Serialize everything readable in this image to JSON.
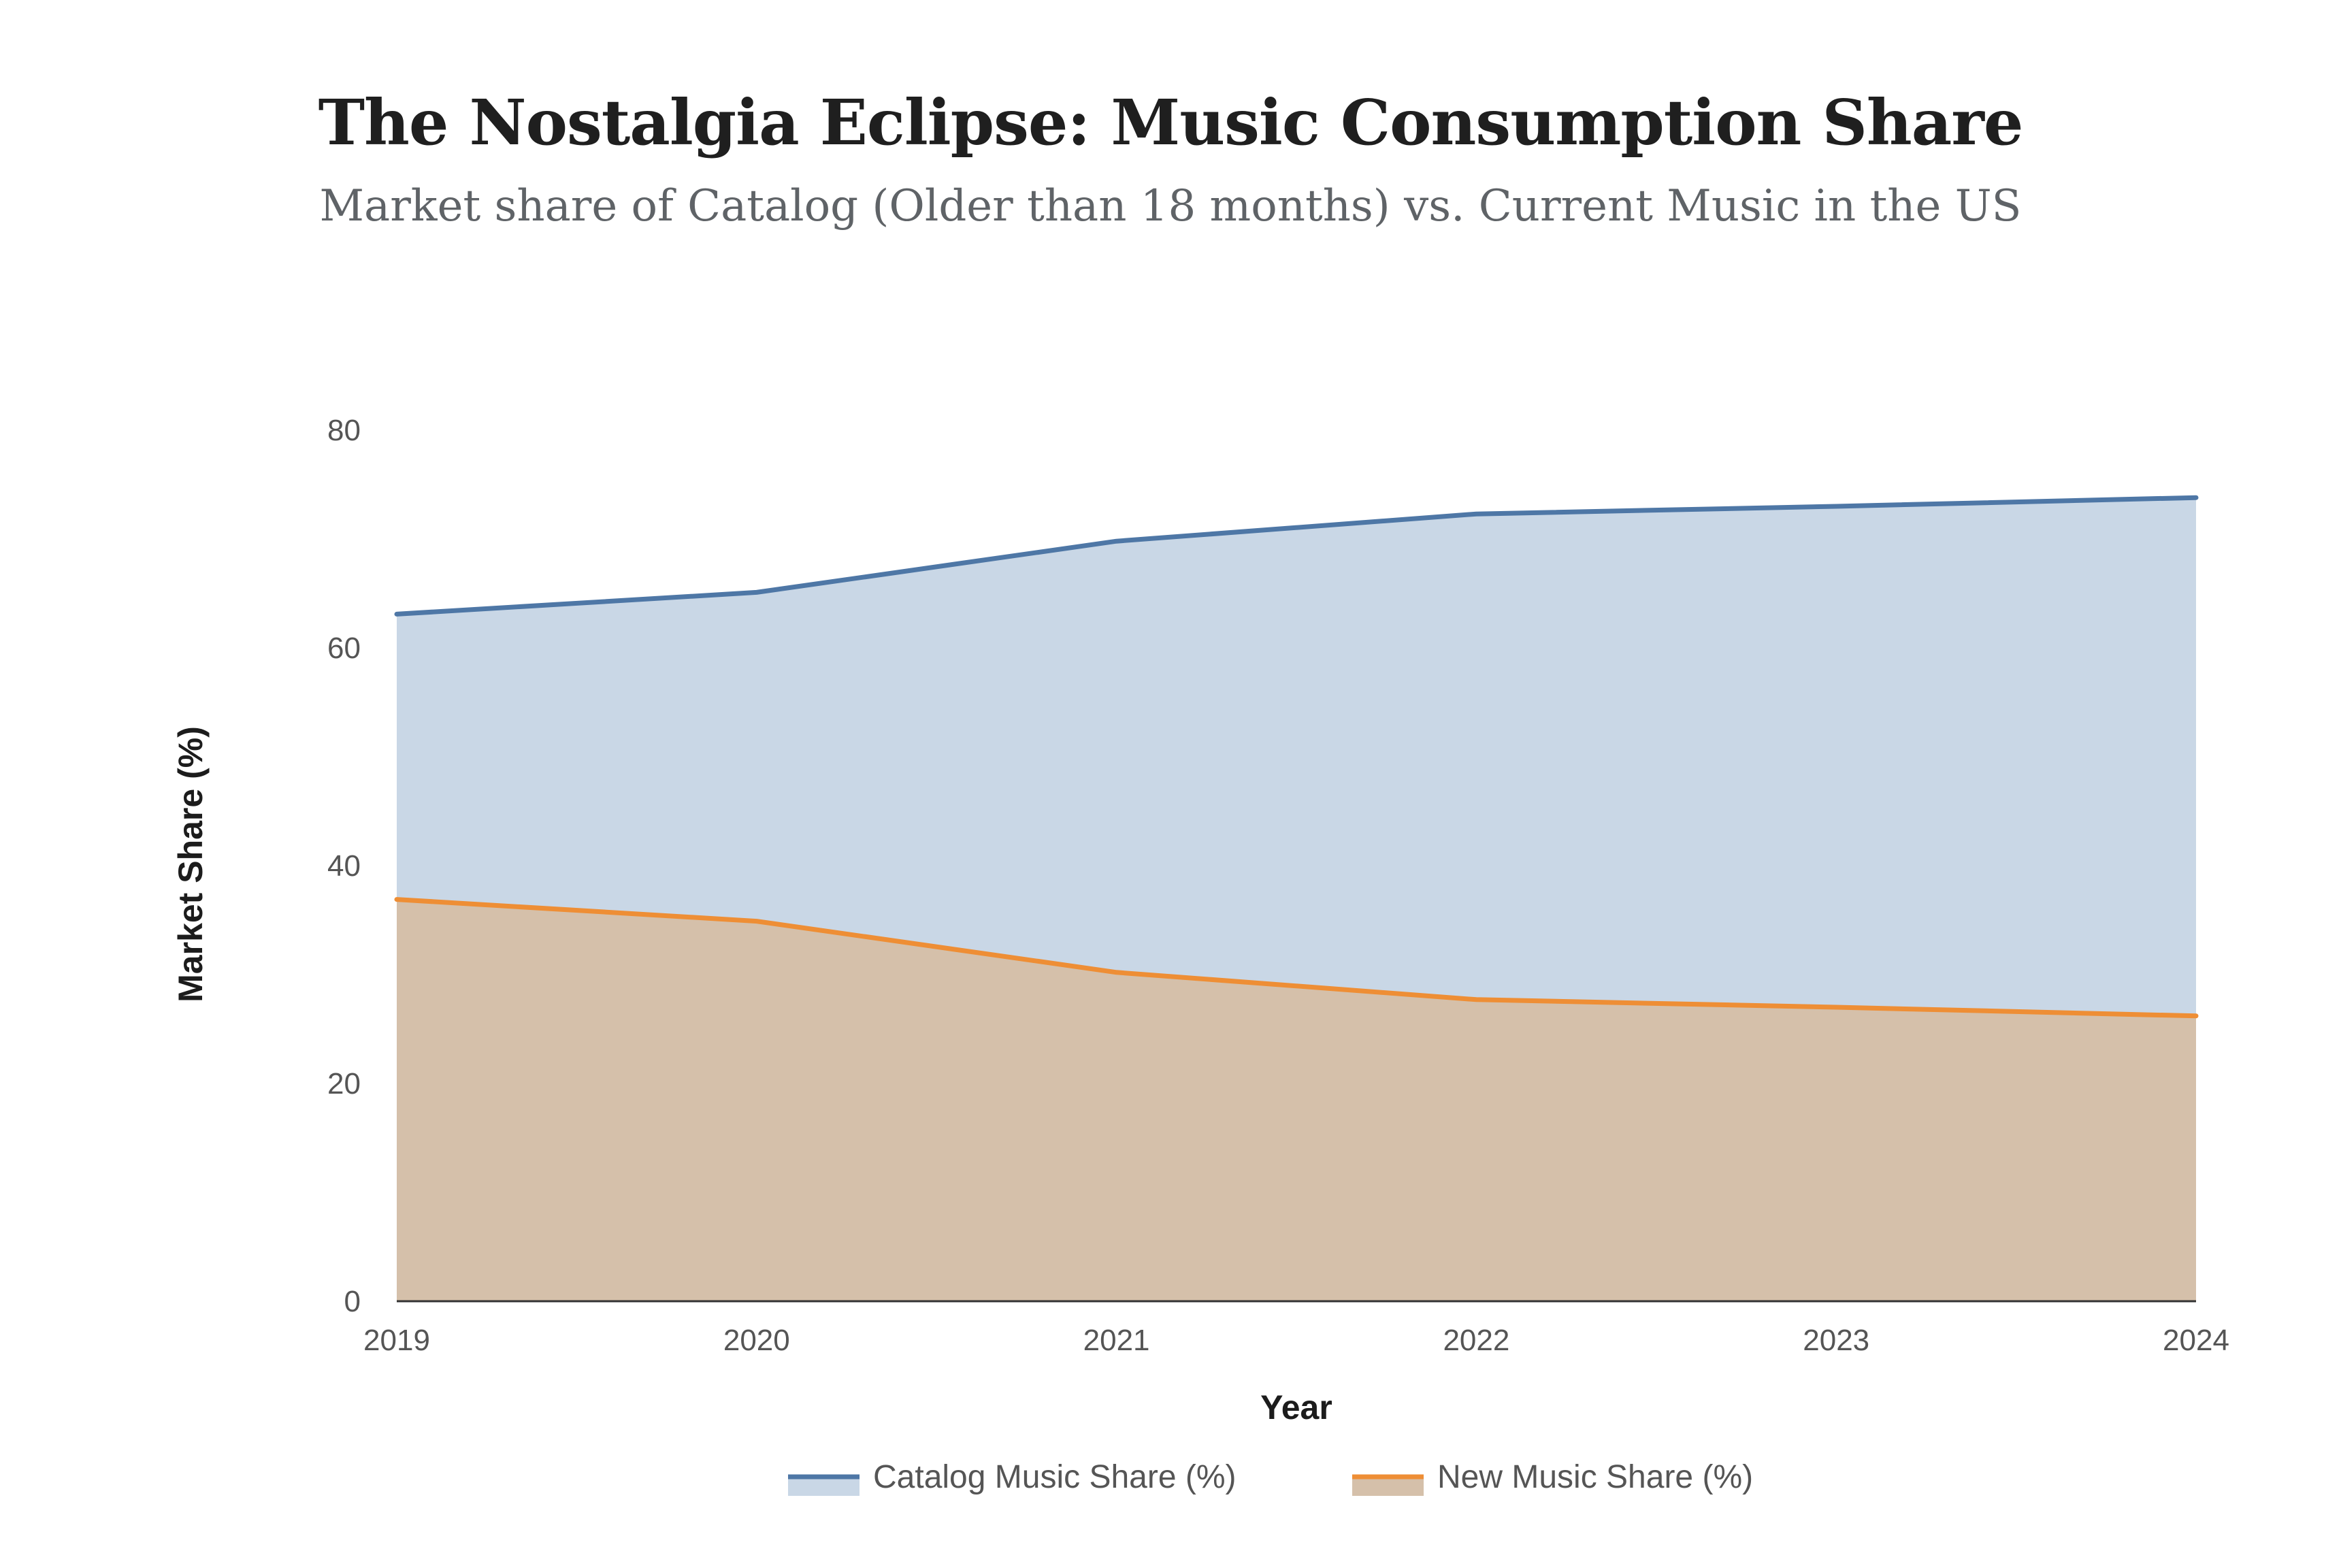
{
  "header": {
    "title": "The Nostalgia Eclipse: Music Consumption Share",
    "subtitle": "Market share of Catalog (Older than 18 months) vs. Current Music in the US"
  },
  "chart_data": {
    "type": "area",
    "title": "The Nostalgia Eclipse: Music Consumption Share",
    "subtitle": "Market share of Catalog (Older than 18 months) vs. Current Music in the US",
    "xlabel": "Year",
    "ylabel": "Market Share (%)",
    "categories": [
      "2019",
      "2020",
      "2021",
      "2022",
      "2023",
      "2024"
    ],
    "ylim": [
      0,
      80
    ],
    "yticks": [
      "0",
      "20",
      "40",
      "60",
      "80"
    ],
    "grid": false,
    "legend_position": "bottom-center",
    "series": [
      {
        "name": "Catalog Music Share (%)",
        "values": [
          63.1,
          65.1,
          69.8,
          72.3,
          73.0,
          73.8
        ],
        "line_color": "#4e77a6",
        "fill_color": "#c9d7e6"
      },
      {
        "name": "New Music Share (%)",
        "values": [
          36.9,
          34.9,
          30.2,
          27.7,
          27.0,
          26.2
        ],
        "line_color": "#ee8e35",
        "fill_color": "#d5c0aa"
      }
    ]
  }
}
